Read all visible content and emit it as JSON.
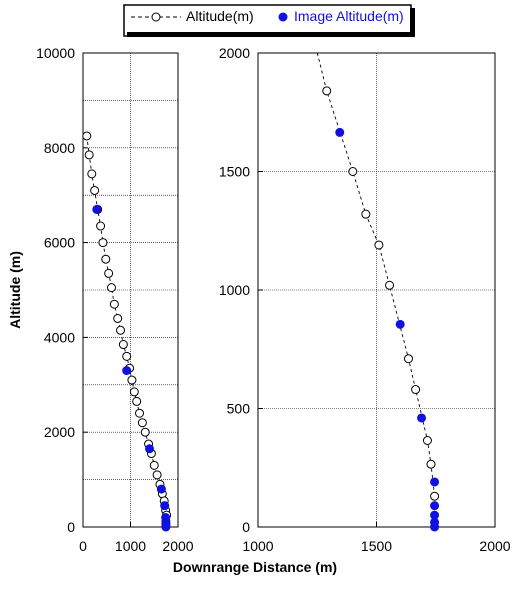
{
  "legend": {
    "series_a": "Altitude(m)",
    "series_b": "Image Altitude(m)"
  },
  "colors": {
    "image_marker": "#1010e0",
    "altitude_marker": "#000000",
    "grid": "#000000",
    "frame": "#000000"
  },
  "chart_data": [
    {
      "type": "scatter",
      "panel": "left",
      "xlabel": "",
      "ylabel": "Altitude (m)",
      "xlim": [
        0,
        2000
      ],
      "ylim": [
        0,
        10000
      ],
      "x_ticks": [
        0,
        1000,
        2000
      ],
      "x_tick_labels": [
        "0",
        "1000",
        "2000"
      ],
      "y_ticks": [
        0,
        2000,
        4000,
        6000,
        8000,
        10000
      ],
      "y_tick_labels": [
        "0",
        "2000",
        "4000",
        "6000",
        "8000",
        "10000"
      ],
      "grid": {
        "x": [
          1000
        ],
        "y": [
          1000,
          2000,
          3000,
          4000,
          5000,
          6000,
          7000,
          8000,
          9000
        ]
      },
      "series": [
        {
          "name": "Altitude(m)",
          "marker": "open-circle",
          "line": "dashed",
          "x": [
            80,
            130,
            185,
            245,
            310,
            370,
            420,
            480,
            540,
            600,
            660,
            730,
            790,
            850,
            920,
            980,
            1030,
            1080,
            1130,
            1190,
            1250,
            1310,
            1380,
            1440,
            1500,
            1560,
            1620,
            1670,
            1710,
            1740,
            1760
          ],
          "y": [
            8250,
            7850,
            7450,
            7100,
            6700,
            6350,
            6000,
            5650,
            5350,
            5050,
            4700,
            4400,
            4150,
            3850,
            3600,
            3350,
            3100,
            2850,
            2650,
            2400,
            2200,
            2000,
            1750,
            1550,
            1300,
            1100,
            900,
            700,
            550,
            350,
            250
          ]
        },
        {
          "name": "Image Altitude(m)",
          "marker": "filled-circle",
          "line": "none",
          "x": [
            290,
            920,
            1400,
            1650,
            1720,
            1740,
            1745,
            1745,
            1745,
            1745
          ],
          "y": [
            6700,
            3300,
            1650,
            800,
            450,
            200,
            130,
            80,
            40,
            0
          ]
        }
      ]
    },
    {
      "type": "scatter",
      "panel": "right",
      "xlabel": "Downrange Distance (m)",
      "ylabel": "",
      "xlim": [
        1000,
        2000
      ],
      "ylim": [
        0,
        2000
      ],
      "x_ticks": [
        1000,
        1500,
        2000
      ],
      "x_tick_labels": [
        "1000",
        "1500",
        "2000"
      ],
      "y_ticks": [
        0,
        500,
        1000,
        1500,
        2000
      ],
      "y_tick_labels": [
        "0",
        "500",
        "1000",
        "1500",
        "2000"
      ],
      "grid": {
        "x": [
          1500
        ],
        "y": [
          500,
          1000,
          1500
        ]
      },
      "series": [
        {
          "name": "Altitude(m)",
          "marker": "open-circle",
          "line": "dashed",
          "x": [
            1290,
            1400,
            1455,
            1510,
            1555,
            1635,
            1665,
            1715,
            1730,
            1745
          ],
          "y": [
            1840,
            1500,
            1320,
            1190,
            1020,
            710,
            580,
            365,
            265,
            130
          ],
          "line_start": [
            1250,
            2000
          ]
        },
        {
          "name": "Image Altitude(m)",
          "marker": "filled-circle",
          "line": "none",
          "x": [
            1345,
            1600,
            1690,
            1745,
            1745,
            1745,
            1745,
            1745
          ],
          "y": [
            1665,
            855,
            460,
            190,
            90,
            50,
            20,
            0
          ]
        }
      ]
    }
  ]
}
